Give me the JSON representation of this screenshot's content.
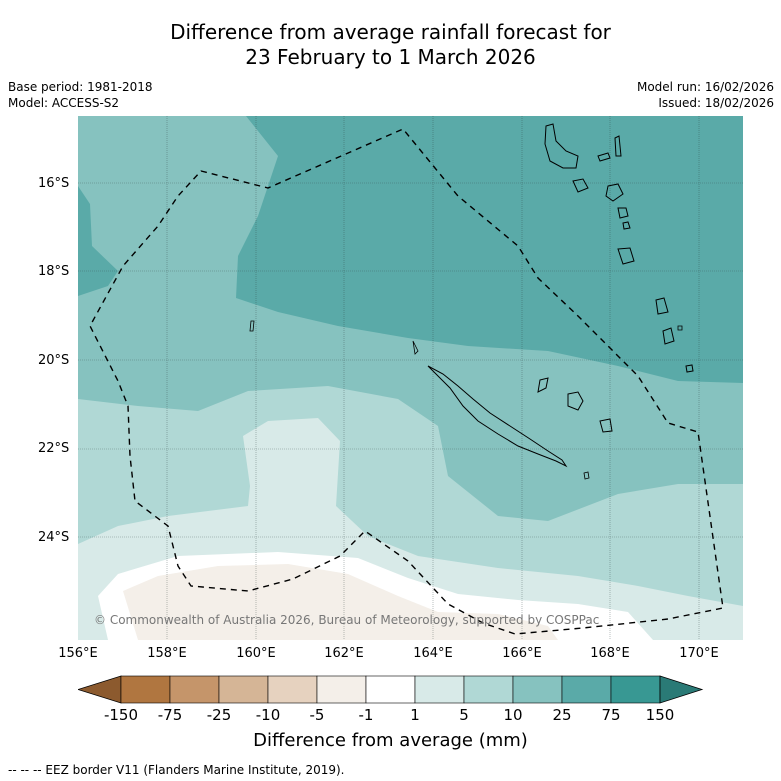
{
  "title": {
    "line1": "Difference from average rainfall forecast for",
    "line2": "23 February to 1 March 2026"
  },
  "meta": {
    "base_period": "Base period: 1981-2018",
    "model": "Model: ACCESS-S2",
    "model_run": "Model run: 16/02/2026",
    "issued": "Issued: 18/02/2026"
  },
  "map": {
    "copyright": "© Commonwealth of Australia 2026, Bureau of Meteorology, supported by COSPPac",
    "lat_labels": [
      "16°S",
      "18°S",
      "20°S",
      "22°S",
      "24°S"
    ],
    "lon_labels": [
      "156°E",
      "158°E",
      "160°E",
      "162°E",
      "164°E",
      "166°E",
      "168°E",
      "170°E"
    ],
    "lat_range": [
      "14.5°S",
      "26.3°S"
    ],
    "lon_range": [
      "156°E",
      "171°E"
    ]
  },
  "colorbar": {
    "ticks": [
      "-150",
      "-75",
      "-25",
      "-10",
      "-5",
      "-1",
      "1",
      "5",
      "10",
      "25",
      "75",
      "150"
    ],
    "colors": [
      "#8c5a2e",
      "#b07640",
      "#c5956a",
      "#d5b596",
      "#e6d2bf",
      "#f4efe9",
      "#ffffff",
      "#d8eae8",
      "#b0d8d5",
      "#86c2bf",
      "#5aaaa8",
      "#389893",
      "#2a7a76"
    ],
    "label": "Difference from average (mm)"
  },
  "footer": {
    "legend": "--  --  -- EEZ border V11 (Flanders Marine Institute, 2019)."
  }
}
